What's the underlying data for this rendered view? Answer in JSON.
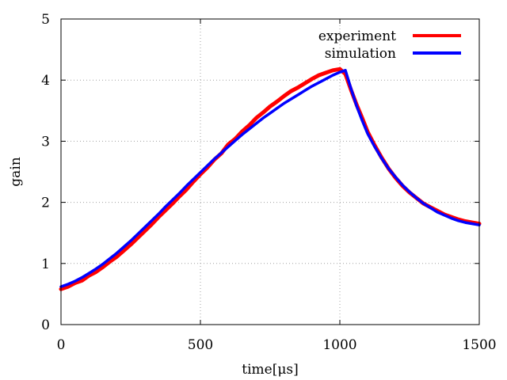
{
  "chart_data": {
    "type": "line",
    "title": "",
    "xlabel": "time[μs]",
    "ylabel": "gain",
    "xlim": [
      0,
      1500
    ],
    "ylim": [
      0,
      5
    ],
    "xticks": [
      0,
      500,
      1000,
      1500
    ],
    "yticks": [
      0,
      1,
      2,
      3,
      4,
      5
    ],
    "xtick_labels": [
      "0",
      "500",
      "1000",
      "1500"
    ],
    "ytick_labels": [
      "0",
      "1",
      "2",
      "3",
      "4",
      "5"
    ],
    "grid": true,
    "legend_position": "top-right",
    "series": [
      {
        "name": "experiment",
        "color": "#ff0000",
        "x": [
          0,
          25,
          50,
          75,
          100,
          125,
          150,
          175,
          200,
          225,
          250,
          275,
          300,
          325,
          350,
          375,
          400,
          425,
          450,
          475,
          500,
          525,
          550,
          575,
          600,
          625,
          650,
          675,
          700,
          725,
          750,
          775,
          800,
          825,
          850,
          875,
          900,
          925,
          950,
          975,
          1000,
          1020,
          1040,
          1060,
          1080,
          1100,
          1125,
          1150,
          1175,
          1200,
          1225,
          1250,
          1275,
          1300,
          1325,
          1350,
          1375,
          1400,
          1425,
          1450,
          1475,
          1500
        ],
        "y": [
          0.58,
          0.62,
          0.68,
          0.72,
          0.8,
          0.86,
          0.94,
          1.03,
          1.11,
          1.21,
          1.31,
          1.42,
          1.53,
          1.64,
          1.76,
          1.87,
          1.98,
          2.1,
          2.21,
          2.34,
          2.46,
          2.57,
          2.7,
          2.8,
          2.95,
          3.04,
          3.16,
          3.26,
          3.38,
          3.47,
          3.57,
          3.65,
          3.74,
          3.82,
          3.88,
          3.95,
          4.02,
          4.08,
          4.12,
          4.16,
          4.18,
          4.1,
          3.84,
          3.6,
          3.38,
          3.15,
          2.93,
          2.73,
          2.55,
          2.4,
          2.27,
          2.16,
          2.07,
          1.98,
          1.92,
          1.86,
          1.8,
          1.76,
          1.72,
          1.69,
          1.67,
          1.65
        ]
      },
      {
        "name": "simulation",
        "color": "#0000ff",
        "x": [
          0,
          25,
          50,
          75,
          100,
          125,
          150,
          175,
          200,
          225,
          250,
          275,
          300,
          325,
          350,
          375,
          400,
          425,
          450,
          475,
          500,
          525,
          550,
          575,
          600,
          625,
          650,
          675,
          700,
          725,
          750,
          775,
          800,
          825,
          850,
          875,
          900,
          925,
          950,
          975,
          1000,
          1020,
          1040,
          1060,
          1080,
          1100,
          1125,
          1150,
          1175,
          1200,
          1225,
          1250,
          1275,
          1300,
          1325,
          1350,
          1375,
          1400,
          1425,
          1450,
          1475,
          1500
        ],
        "y": [
          0.62,
          0.66,
          0.71,
          0.77,
          0.84,
          0.91,
          0.99,
          1.08,
          1.17,
          1.27,
          1.37,
          1.48,
          1.59,
          1.7,
          1.81,
          1.93,
          2.04,
          2.15,
          2.27,
          2.38,
          2.49,
          2.6,
          2.71,
          2.81,
          2.91,
          3.01,
          3.11,
          3.2,
          3.29,
          3.38,
          3.46,
          3.54,
          3.62,
          3.69,
          3.76,
          3.83,
          3.9,
          3.96,
          4.02,
          4.08,
          4.13,
          4.16,
          3.86,
          3.58,
          3.34,
          3.12,
          2.91,
          2.72,
          2.55,
          2.41,
          2.28,
          2.17,
          2.07,
          1.98,
          1.91,
          1.84,
          1.79,
          1.74,
          1.7,
          1.67,
          1.65,
          1.63
        ]
      }
    ]
  }
}
